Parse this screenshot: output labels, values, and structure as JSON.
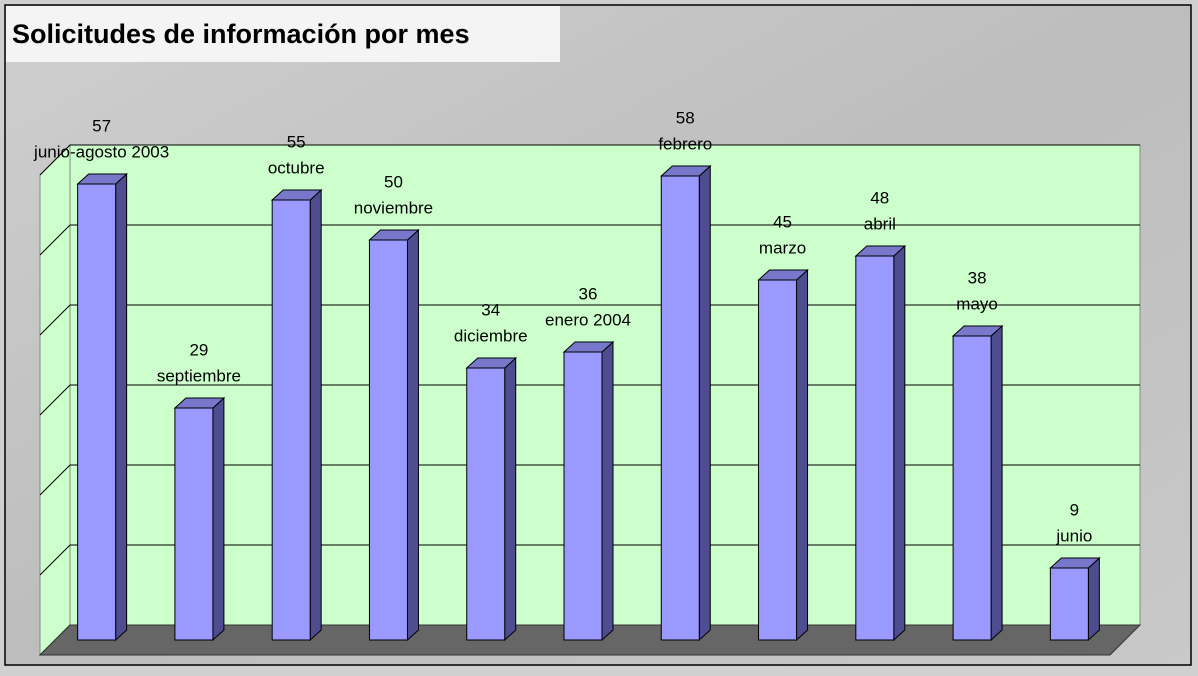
{
  "chart_data": {
    "type": "bar3d",
    "title": "Solicitudes de información por mes",
    "categories": [
      "junio-agosto 2003",
      "septiembre",
      "octubre",
      "noviembre",
      "diciembre",
      "enero 2004",
      "febrero",
      "marzo",
      "abril",
      "mayo",
      "junio"
    ],
    "values": [
      57,
      29,
      55,
      50,
      34,
      36,
      58,
      45,
      48,
      38,
      9
    ],
    "color": "#9999ff",
    "ylim": [
      0,
      60
    ],
    "yticks": [
      0,
      10,
      20,
      30,
      40,
      50,
      60
    ],
    "grid": true
  }
}
